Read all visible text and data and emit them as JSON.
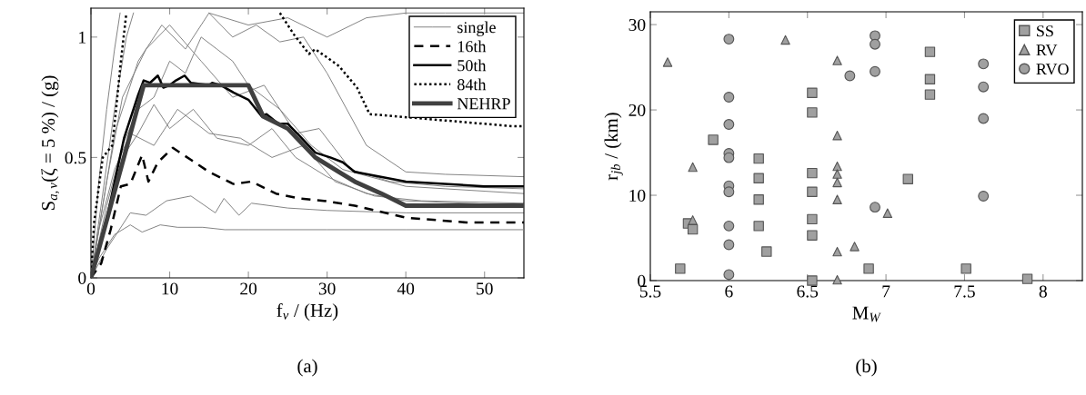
{
  "chart_data": [
    {
      "type": "line",
      "xlabel": "f$_{v}$ / (Hz)",
      "ylabel": "S$_{a,v}$(ζ = 5 %) / (g)",
      "annotations": [
        "(a)"
      ],
      "xlim": [
        0,
        55
      ],
      "ylim": [
        0,
        1.12
      ],
      "xticks": [
        0,
        10,
        20,
        30,
        40,
        50
      ],
      "yticks": [
        0,
        0.5,
        1
      ],
      "legend": "top right",
      "grid": false,
      "series": [
        {
          "name": "single",
          "color": "#808080",
          "line_style": "solid",
          "x": [
            0,
            1,
            3,
            5,
            6.5,
            8.8,
            11,
            14.2,
            17,
            20,
            30,
            40,
            55
          ],
          "values": [
            0,
            0.08,
            0.18,
            0.22,
            0.19,
            0.22,
            0.21,
            0.21,
            0.2,
            0.2,
            0.2,
            0.2,
            0.2
          ]
        },
        {
          "color": "#808080",
          "line_style": "solid",
          "x": [
            0,
            2,
            5,
            7,
            9.6,
            12.7,
            15.8,
            16.9,
            18.8,
            20.4,
            25,
            30,
            40,
            55
          ],
          "values": [
            0,
            0.12,
            0.27,
            0.26,
            0.32,
            0.34,
            0.27,
            0.33,
            0.26,
            0.31,
            0.29,
            0.28,
            0.27,
            0.27
          ]
        },
        {
          "color": "#808080",
          "line_style": "solid",
          "x": [
            0,
            1,
            2,
            3,
            3.7
          ],
          "values": [
            0,
            0.4,
            0.7,
            0.95,
            1.1
          ]
        },
        {
          "color": "#808080",
          "line_style": "solid",
          "x": [
            0,
            1.5,
            3,
            4.5,
            5.4
          ],
          "values": [
            0,
            0.35,
            0.7,
            1.0,
            1.1
          ]
        },
        {
          "color": "#808080",
          "line_style": "solid",
          "x": [
            0,
            2,
            4,
            6,
            8,
            10,
            12,
            14,
            16,
            18,
            20,
            24,
            28,
            32,
            40,
            55
          ],
          "values": [
            0,
            0.3,
            0.55,
            0.7,
            0.75,
            0.9,
            0.85,
            1.0,
            0.95,
            0.9,
            0.8,
            0.7,
            0.55,
            0.45,
            0.38,
            0.35
          ]
        },
        {
          "color": "#808080",
          "line_style": "solid",
          "x": [
            0,
            2,
            4,
            6,
            8,
            10,
            13,
            16,
            20,
            23,
            26,
            30,
            35,
            40,
            55
          ],
          "values": [
            0,
            0.25,
            0.5,
            0.6,
            0.72,
            0.62,
            0.7,
            0.58,
            0.55,
            0.62,
            0.5,
            0.42,
            0.35,
            0.32,
            0.3
          ]
        },
        {
          "color": "#808080",
          "line_style": "solid",
          "x": [
            0,
            3,
            6,
            9,
            12,
            15,
            18,
            21,
            24,
            27,
            30,
            35,
            40,
            45,
            55
          ],
          "values": [
            0,
            0.6,
            0.9,
            1.05,
            0.95,
            1.1,
            1.0,
            1.05,
            0.98,
            1.0,
            0.85,
            0.55,
            0.44,
            0.43,
            0.42
          ]
        },
        {
          "color": "#808080",
          "line_style": "solid",
          "x": [
            0,
            2,
            4,
            7,
            10,
            14,
            18,
            22,
            26,
            29,
            33,
            38,
            45,
            55
          ],
          "values": [
            0,
            0.4,
            0.75,
            0.95,
            1.05,
            0.9,
            0.75,
            0.8,
            0.6,
            0.62,
            0.45,
            0.4,
            0.38,
            0.37
          ]
        },
        {
          "color": "#808080",
          "line_style": "solid",
          "x": [
            0,
            1,
            3,
            5,
            8,
            11,
            15,
            19,
            23,
            27,
            31,
            36,
            42,
            55
          ],
          "values": [
            0,
            0.2,
            0.45,
            0.6,
            0.55,
            0.7,
            0.6,
            0.58,
            0.5,
            0.55,
            0.4,
            0.34,
            0.32,
            0.31
          ]
        },
        {
          "color": "#808080",
          "line_style": "solid",
          "x": [
            15,
            20,
            25,
            30,
            35,
            40,
            45,
            50,
            55
          ],
          "values": [
            1.1,
            1.05,
            1.08,
            1.0,
            1.08,
            1.1,
            1.1,
            1.1,
            1.1
          ]
        },
        {
          "name": "16th",
          "color": "#000000",
          "line_style": "dashed",
          "x": [
            0,
            1.3,
            2.5,
            3.8,
            5,
            6.5,
            7.3,
            8.5,
            10.4,
            12.7,
            15,
            18.1,
            20.4,
            23.5,
            26.5,
            29.6,
            33.5,
            40,
            47.7,
            55
          ],
          "values": [
            0,
            0.06,
            0.2,
            0.38,
            0.39,
            0.51,
            0.4,
            0.48,
            0.54,
            0.49,
            0.44,
            0.39,
            0.4,
            0.35,
            0.33,
            0.32,
            0.3,
            0.25,
            0.23,
            0.23
          ]
        },
        {
          "name": "50th",
          "color": "#000000",
          "line_style": "solid",
          "x": [
            0,
            1.7,
            4.2,
            6,
            6.7,
            7.5,
            8.5,
            9.2,
            10,
            10.8,
            11.9,
            12.7,
            15,
            15.4,
            16.5,
            18.1,
            20,
            21.7,
            22.3,
            23.8,
            25,
            26.5,
            28.5,
            30.4,
            32,
            33.5,
            40,
            50,
            55
          ],
          "values": [
            0,
            0.2,
            0.58,
            0.76,
            0.82,
            0.81,
            0.84,
            0.79,
            0.8,
            0.82,
            0.84,
            0.81,
            0.8,
            0.81,
            0.8,
            0.77,
            0.74,
            0.67,
            0.68,
            0.64,
            0.64,
            0.59,
            0.52,
            0.5,
            0.48,
            0.44,
            0.4,
            0.38,
            0.38
          ]
        },
        {
          "name": "84th",
          "color": "#000000",
          "line_style": "dotted",
          "x": [
            0,
            0.4,
            1.5,
            2.7,
            3.1,
            3.8,
            4.5,
            14,
            24,
            25.8,
            27.7,
            28.5,
            31.5,
            33.8,
            35.4,
            53.5,
            55
          ],
          "values": [
            0,
            0.23,
            0.5,
            0.55,
            0.67,
            0.9,
            1.1,
            null,
            1.1,
            1.01,
            0.93,
            0.95,
            0.88,
            0.79,
            0.68,
            0.63,
            0.63
          ]
        },
        {
          "name": "NEHRP",
          "color": "#404040",
          "line_style": "solid",
          "x": [
            0,
            6.7,
            20,
            21.9,
            25,
            28.5,
            31.5,
            33.5,
            36.9,
            40,
            55
          ],
          "values": [
            0,
            0.8,
            0.8,
            0.67,
            0.62,
            0.5,
            0.44,
            0.4,
            0.35,
            0.3,
            0.3
          ]
        }
      ]
    },
    {
      "type": "scatter",
      "xlabel": "M$_{W}$",
      "ylabel": "r$_{jb}$ / (km)",
      "annotations": [
        "(b)"
      ],
      "xlim": [
        5.5,
        8.25
      ],
      "ylim": [
        0,
        31.5
      ],
      "xticks": [
        5.5,
        6,
        6.5,
        7,
        7.5,
        8
      ],
      "yticks": [
        0,
        10,
        20,
        30
      ],
      "legend": "top right",
      "grid": false,
      "series": [
        {
          "name": "SS",
          "color": "#a0a0a0",
          "marker": "square",
          "x": [
            5.9,
            5.74,
            5.77,
            5.69,
            6.19,
            6.19,
            6.19,
            6.19,
            6.24,
            6.53,
            6.53,
            6.53,
            6.53,
            6.53,
            6.53,
            6.53,
            6.89,
            7.28,
            7.28,
            7.28,
            7.14,
            7.51,
            7.9
          ],
          "values": [
            16.5,
            6.7,
            6.0,
            1.4,
            14.3,
            12.0,
            9.5,
            6.4,
            3.4,
            22.0,
            19.7,
            12.6,
            10.4,
            7.2,
            5.3,
            0,
            1.4,
            26.8,
            23.6,
            21.8,
            11.9,
            1.4,
            0.2
          ]
        },
        {
          "name": "RV",
          "color": "#a0a0a0",
          "marker": "triangle",
          "x": [
            5.61,
            6.36,
            5.77,
            5.77,
            6.69,
            6.69,
            6.69,
            6.69,
            6.69,
            6.69,
            6.69,
            6.69,
            6.8,
            7.01
          ],
          "values": [
            25.6,
            28.2,
            13.3,
            7.1,
            25.8,
            17.0,
            13.4,
            12.5,
            11.5,
            9.5,
            3.4,
            0.1,
            4.0,
            7.9
          ]
        },
        {
          "name": "RVO",
          "color": "#a0a0a0",
          "marker": "circle",
          "x": [
            6,
            6,
            6,
            6,
            6,
            6,
            6,
            6,
            6,
            6,
            6.77,
            6.93,
            6.93,
            6.93,
            6.93,
            7.62,
            7.62,
            7.62,
            7.62
          ],
          "values": [
            28.3,
            21.5,
            18.3,
            14.9,
            14.4,
            11.1,
            10.4,
            6.4,
            4.2,
            0.7,
            24.0,
            28.7,
            27.7,
            24.5,
            8.6,
            25.4,
            22.7,
            19.0,
            9.9
          ]
        }
      ]
    }
  ]
}
